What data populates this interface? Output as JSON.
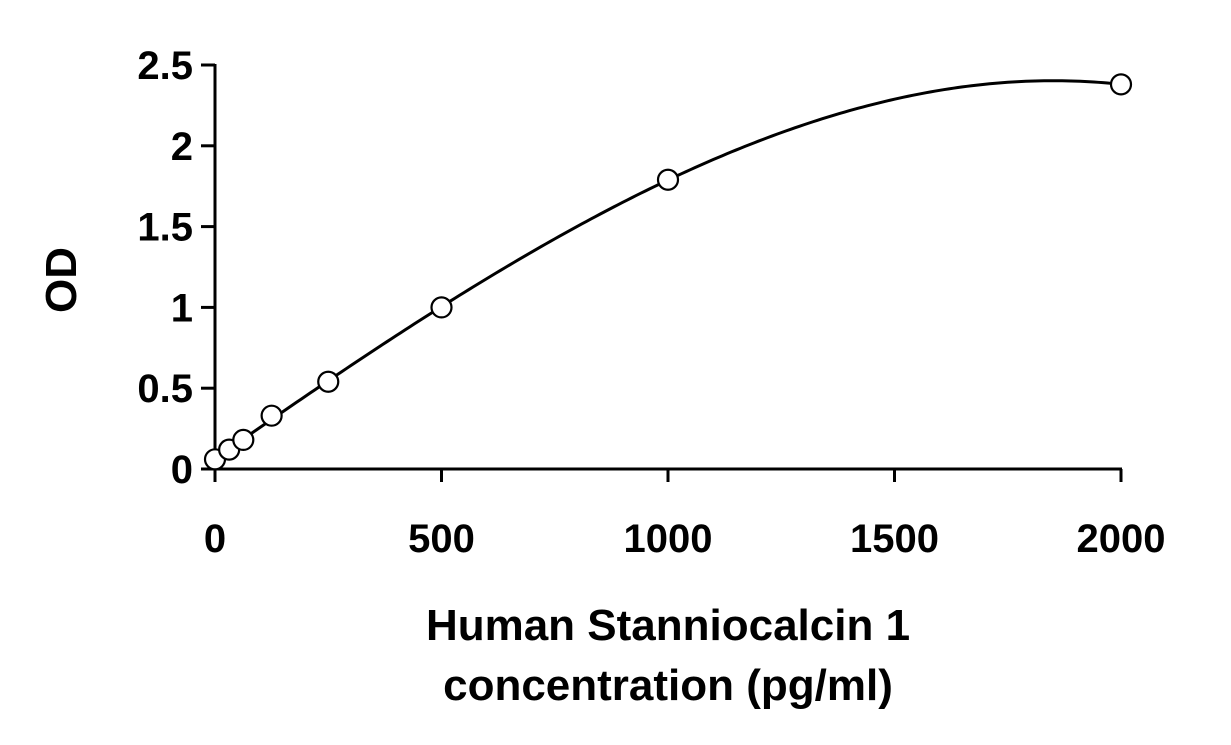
{
  "chart_data": {
    "type": "scatter",
    "xlabel": [
      "Human Stanniocalcin 1",
      "concentration (pg/ml)"
    ],
    "ylabel": "OD",
    "xlim": [
      0,
      2000
    ],
    "ylim": [
      0,
      2.5
    ],
    "x_ticks": [
      0,
      500,
      1000,
      1500,
      2000
    ],
    "x_tick_labels": [
      "0",
      "500",
      "1000",
      "1500",
      "2000"
    ],
    "y_ticks": [
      0,
      0.5,
      1,
      1.5,
      2,
      2.5
    ],
    "y_tick_labels": [
      "0",
      "0.5",
      "1",
      "1.5",
      "2",
      "2.5"
    ],
    "grid": false,
    "legend": false,
    "colors": {
      "axis": "#000000",
      "curve": "#000000",
      "marker_stroke": "#000000",
      "marker_fill": "#ffffff"
    },
    "series": [
      {
        "x": [
          0,
          31.25,
          62.5,
          125,
          250,
          500,
          1000,
          2000
        ],
        "y": [
          0.06,
          0.12,
          0.18,
          0.33,
          0.54,
          1.0,
          1.79,
          2.38
        ],
        "marker": "open-circle",
        "fit": "polynomial-curve"
      }
    ]
  }
}
